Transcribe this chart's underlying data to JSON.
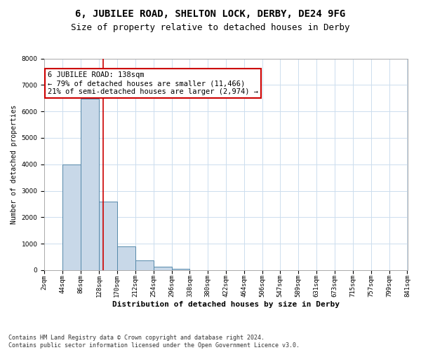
{
  "title_line1": "6, JUBILEE ROAD, SHELTON LOCK, DERBY, DE24 9FG",
  "title_line2": "Size of property relative to detached houses in Derby",
  "xlabel": "Distribution of detached houses by size in Derby",
  "ylabel": "Number of detached properties",
  "footnote": "Contains HM Land Registry data © Crown copyright and database right 2024.\nContains public sector information licensed under the Open Government Licence v3.0.",
  "bar_edges": [
    2,
    44,
    86,
    128,
    170,
    212,
    254,
    296,
    338,
    380,
    422,
    464,
    506,
    547,
    589,
    631,
    673,
    715,
    757,
    799,
    841
  ],
  "bar_heights": [
    0,
    3980,
    6480,
    2600,
    900,
    380,
    120,
    60,
    0,
    0,
    0,
    0,
    0,
    0,
    0,
    0,
    0,
    0,
    0,
    0
  ],
  "bar_color": "#c8d8e8",
  "bar_edge_color": "#5588aa",
  "property_size": 138,
  "vline_color": "#cc0000",
  "annotation_text": "6 JUBILEE ROAD: 138sqm\n← 79% of detached houses are smaller (11,466)\n21% of semi-detached houses are larger (2,974) →",
  "annotation_box_color": "#ffffff",
  "annotation_box_edge": "#cc0000",
  "ylim": [
    0,
    8000
  ],
  "yticks": [
    0,
    1000,
    2000,
    3000,
    4000,
    5000,
    6000,
    7000,
    8000
  ],
  "bg_color": "#ffffff",
  "grid_color": "#ccddee",
  "title1_fontsize": 10,
  "title2_fontsize": 9,
  "xlabel_fontsize": 8,
  "ylabel_fontsize": 7,
  "annot_fontsize": 7.5,
  "tick_fontsize": 6.5
}
